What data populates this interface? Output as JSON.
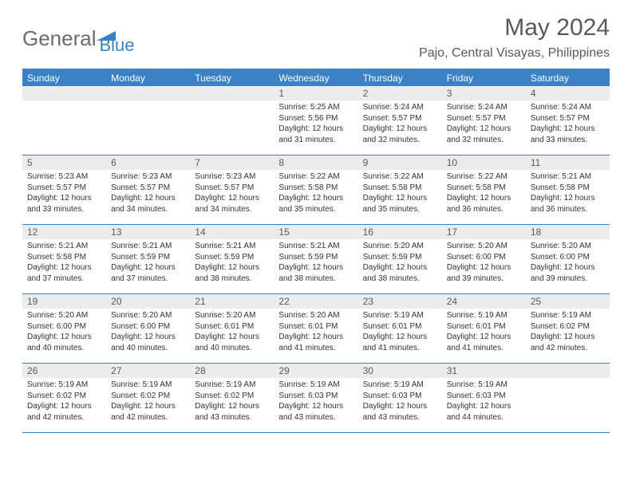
{
  "logo": {
    "word1": "General",
    "word2": "Blue"
  },
  "title": "May 2024",
  "location": "Pajo, Central Visayas, Philippines",
  "colors": {
    "brand_blue": "#3b82c4",
    "header_gray": "#ececec",
    "text_gray": "#595959",
    "body_text": "#333333",
    "background": "#ffffff"
  },
  "weekdays": [
    "Sunday",
    "Monday",
    "Tuesday",
    "Wednesday",
    "Thursday",
    "Friday",
    "Saturday"
  ],
  "weeks": [
    [
      null,
      null,
      null,
      {
        "n": "1",
        "sunrise": "5:25 AM",
        "sunset": "5:56 PM",
        "daylight": "12 hours and 31 minutes."
      },
      {
        "n": "2",
        "sunrise": "5:24 AM",
        "sunset": "5:57 PM",
        "daylight": "12 hours and 32 minutes."
      },
      {
        "n": "3",
        "sunrise": "5:24 AM",
        "sunset": "5:57 PM",
        "daylight": "12 hours and 32 minutes."
      },
      {
        "n": "4",
        "sunrise": "5:24 AM",
        "sunset": "5:57 PM",
        "daylight": "12 hours and 33 minutes."
      }
    ],
    [
      {
        "n": "5",
        "sunrise": "5:23 AM",
        "sunset": "5:57 PM",
        "daylight": "12 hours and 33 minutes."
      },
      {
        "n": "6",
        "sunrise": "5:23 AM",
        "sunset": "5:57 PM",
        "daylight": "12 hours and 34 minutes."
      },
      {
        "n": "7",
        "sunrise": "5:23 AM",
        "sunset": "5:57 PM",
        "daylight": "12 hours and 34 minutes."
      },
      {
        "n": "8",
        "sunrise": "5:22 AM",
        "sunset": "5:58 PM",
        "daylight": "12 hours and 35 minutes."
      },
      {
        "n": "9",
        "sunrise": "5:22 AM",
        "sunset": "5:58 PM",
        "daylight": "12 hours and 35 minutes."
      },
      {
        "n": "10",
        "sunrise": "5:22 AM",
        "sunset": "5:58 PM",
        "daylight": "12 hours and 36 minutes."
      },
      {
        "n": "11",
        "sunrise": "5:21 AM",
        "sunset": "5:58 PM",
        "daylight": "12 hours and 36 minutes."
      }
    ],
    [
      {
        "n": "12",
        "sunrise": "5:21 AM",
        "sunset": "5:58 PM",
        "daylight": "12 hours and 37 minutes."
      },
      {
        "n": "13",
        "sunrise": "5:21 AM",
        "sunset": "5:59 PM",
        "daylight": "12 hours and 37 minutes."
      },
      {
        "n": "14",
        "sunrise": "5:21 AM",
        "sunset": "5:59 PM",
        "daylight": "12 hours and 38 minutes."
      },
      {
        "n": "15",
        "sunrise": "5:21 AM",
        "sunset": "5:59 PM",
        "daylight": "12 hours and 38 minutes."
      },
      {
        "n": "16",
        "sunrise": "5:20 AM",
        "sunset": "5:59 PM",
        "daylight": "12 hours and 38 minutes."
      },
      {
        "n": "17",
        "sunrise": "5:20 AM",
        "sunset": "6:00 PM",
        "daylight": "12 hours and 39 minutes."
      },
      {
        "n": "18",
        "sunrise": "5:20 AM",
        "sunset": "6:00 PM",
        "daylight": "12 hours and 39 minutes."
      }
    ],
    [
      {
        "n": "19",
        "sunrise": "5:20 AM",
        "sunset": "6:00 PM",
        "daylight": "12 hours and 40 minutes."
      },
      {
        "n": "20",
        "sunrise": "5:20 AM",
        "sunset": "6:00 PM",
        "daylight": "12 hours and 40 minutes."
      },
      {
        "n": "21",
        "sunrise": "5:20 AM",
        "sunset": "6:01 PM",
        "daylight": "12 hours and 40 minutes."
      },
      {
        "n": "22",
        "sunrise": "5:20 AM",
        "sunset": "6:01 PM",
        "daylight": "12 hours and 41 minutes."
      },
      {
        "n": "23",
        "sunrise": "5:19 AM",
        "sunset": "6:01 PM",
        "daylight": "12 hours and 41 minutes."
      },
      {
        "n": "24",
        "sunrise": "5:19 AM",
        "sunset": "6:01 PM",
        "daylight": "12 hours and 41 minutes."
      },
      {
        "n": "25",
        "sunrise": "5:19 AM",
        "sunset": "6:02 PM",
        "daylight": "12 hours and 42 minutes."
      }
    ],
    [
      {
        "n": "26",
        "sunrise": "5:19 AM",
        "sunset": "6:02 PM",
        "daylight": "12 hours and 42 minutes."
      },
      {
        "n": "27",
        "sunrise": "5:19 AM",
        "sunset": "6:02 PM",
        "daylight": "12 hours and 42 minutes."
      },
      {
        "n": "28",
        "sunrise": "5:19 AM",
        "sunset": "6:02 PM",
        "daylight": "12 hours and 43 minutes."
      },
      {
        "n": "29",
        "sunrise": "5:19 AM",
        "sunset": "6:03 PM",
        "daylight": "12 hours and 43 minutes."
      },
      {
        "n": "30",
        "sunrise": "5:19 AM",
        "sunset": "6:03 PM",
        "daylight": "12 hours and 43 minutes."
      },
      {
        "n": "31",
        "sunrise": "5:19 AM",
        "sunset": "6:03 PM",
        "daylight": "12 hours and 44 minutes."
      },
      null
    ]
  ],
  "labels": {
    "sunrise": "Sunrise:",
    "sunset": "Sunset:",
    "daylight": "Daylight:"
  }
}
